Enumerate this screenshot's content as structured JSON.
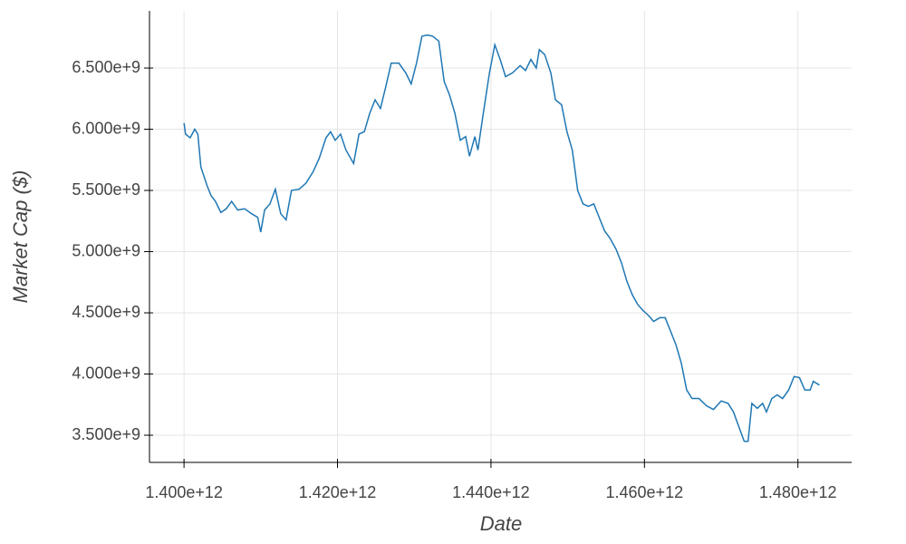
{
  "chart_data": {
    "type": "line",
    "x_label": "Date",
    "y_label": "Market Cap ($)",
    "grid": true,
    "xlim": [
      1395500000000,
      1487000000000
    ],
    "ylim": [
      3278000000,
      6967000000
    ],
    "xticks": [
      {
        "value": 1400000000000,
        "label": "1.400e+12"
      },
      {
        "value": 1420000000000,
        "label": "1.420e+12"
      },
      {
        "value": 1440000000000,
        "label": "1.440e+12"
      },
      {
        "value": 1460000000000,
        "label": "1.460e+12"
      },
      {
        "value": 1480000000000,
        "label": "1.480e+12"
      }
    ],
    "yticks": [
      {
        "value": 3500000000,
        "label": "3.500e+9"
      },
      {
        "value": 4000000000,
        "label": "4.000e+9"
      },
      {
        "value": 4500000000,
        "label": "4.500e+9"
      },
      {
        "value": 5000000000,
        "label": "5.000e+9"
      },
      {
        "value": 5500000000,
        "label": "5.500e+9"
      },
      {
        "value": 6000000000,
        "label": "6.000e+9"
      },
      {
        "value": 6500000000,
        "label": "6.500e+9"
      }
    ],
    "series": [
      {
        "color": "#1f77b4",
        "x": [
          1400000000000.0,
          1400200000000.0,
          1400800000000.0,
          1401400000000.0,
          1401800000000.0,
          1402200000000.0,
          1403000000000.0,
          1403500000000.0,
          1404100000000.0,
          1404800000000.0,
          1405500000000.0,
          1406200000000.0,
          1407000000000.0,
          1407900000000.0,
          1408800000000.0,
          1409600000000.0,
          1410000000000.0,
          1410500000000.0,
          1411200000000.0,
          1411900000000.0,
          1412600000000.0,
          1413300000000.0,
          1414000000000.0,
          1415000000000.0,
          1415900000000.0,
          1416800000000.0,
          1417600000000.0,
          1418500000000.0,
          1419100000000.0,
          1419700000000.0,
          1420400000000.0,
          1421100000000.0,
          1422100000000.0,
          1422800000000.0,
          1423500000000.0,
          1424200000000.0,
          1424900000000.0,
          1425600000000.0,
          1426300000000.0,
          1427000000000.0,
          1428000000000.0,
          1428900000000.0,
          1429600000000.0,
          1430300000000.0,
          1431000000000.0,
          1431700000000.0,
          1432400000000.0,
          1433200000000.0,
          1433900000000.0,
          1434600000000.0,
          1435300000000.0,
          1436000000000.0,
          1436700000000.0,
          1437200000000.0,
          1437900000000.0,
          1438300000000.0,
          1439000000000.0,
          1439800000000.0,
          1440500000000.0,
          1441200000000.0,
          1441900000000.0,
          1442800000000.0,
          1443800000000.0,
          1444500000000.0,
          1445200000000.0,
          1445900000000.0,
          1446300000000.0,
          1447000000000.0,
          1447800000000.0,
          1448400000000.0,
          1449200000000.0,
          1449900000000.0,
          1450600000000.0,
          1451300000000.0,
          1452000000000.0,
          1452700000000.0,
          1453400000000.0,
          1454100000000.0,
          1454800000000.0,
          1455500000000.0,
          1456300000000.0,
          1457000000000.0,
          1457700000000.0,
          1458400000000.0,
          1459100000000.0,
          1459800000000.0,
          1460500000000.0,
          1461200000000.0,
          1462000000000.0,
          1462700000000.0,
          1463400000000.0,
          1464100000000.0,
          1464800000000.0,
          1465500000000.0,
          1466200000000.0,
          1467100000000.0,
          1468100000000.0,
          1469000000000.0,
          1470000000000.0,
          1470900000000.0,
          1471600000000.0,
          1472300000000.0,
          1473000000000.0,
          1473500000000.0,
          1474000000000.0,
          1474700000000.0,
          1475400000000.0,
          1475900000000.0,
          1476600000000.0,
          1477300000000.0,
          1478000000000.0,
          1478800000000.0,
          1479500000000.0,
          1480200000000.0,
          1480900000000.0,
          1481600000000.0,
          1482000000000.0,
          1482800000000.0
        ],
        "values": [
          6050000000.0,
          5960000000.0,
          5930000000.0,
          6000000000.0,
          5960000000.0,
          5690000000.0,
          5540000000.0,
          5460000000.0,
          5410000000.0,
          5320000000.0,
          5350000000.0,
          5410000000.0,
          5340000000.0,
          5350000000.0,
          5310000000.0,
          5280000000.0,
          5160000000.0,
          5340000000.0,
          5390000000.0,
          5510000000.0,
          5310000000.0,
          5260000000.0,
          5500000000.0,
          5510000000.0,
          5560000000.0,
          5650000000.0,
          5760000000.0,
          5930000000.0,
          5980000000.0,
          5910000000.0,
          5960000000.0,
          5830000000.0,
          5720000000.0,
          5960000000.0,
          5980000000.0,
          6130000000.0,
          6240000000.0,
          6170000000.0,
          6350000000.0,
          6540000000.0,
          6540000000.0,
          6460000000.0,
          6370000000.0,
          6540000000.0,
          6760000000.0,
          6770000000.0,
          6760000000.0,
          6720000000.0,
          6390000000.0,
          6280000000.0,
          6130000000.0,
          5910000000.0,
          5940000000.0,
          5780000000.0,
          5940000000.0,
          5830000000.0,
          6130000000.0,
          6460000000.0,
          6690000000.0,
          6570000000.0,
          6430000000.0,
          6460000000.0,
          6520000000.0,
          6480000000.0,
          6570000000.0,
          6500000000.0,
          6650000000.0,
          6610000000.0,
          6460000000.0,
          6240000000.0,
          6200000000.0,
          5980000000.0,
          5830000000.0,
          5500000000.0,
          5390000000.0,
          5370000000.0,
          5390000000.0,
          5280000000.0,
          5170000000.0,
          5110000000.0,
          5020000000.0,
          4910000000.0,
          4760000000.0,
          4650000000.0,
          4570000000.0,
          4520000000.0,
          4480000000.0,
          4430000000.0,
          4460000000.0,
          4460000000.0,
          4350000000.0,
          4240000000.0,
          4090000000.0,
          3870000000.0,
          3800000000.0,
          3800000000.0,
          3740000000.0,
          3710000000.0,
          3780000000.0,
          3760000000.0,
          3690000000.0,
          3570000000.0,
          3450000000.0,
          3450000000.0,
          3760000000.0,
          3720000000.0,
          3760000000.0,
          3690000000.0,
          3800000000.0,
          3830000000.0,
          3800000000.0,
          3870000000.0,
          3980000000.0,
          3970000000.0,
          3870000000.0,
          3870000000.0,
          3940000000.0,
          3910000000.0
        ]
      }
    ]
  }
}
